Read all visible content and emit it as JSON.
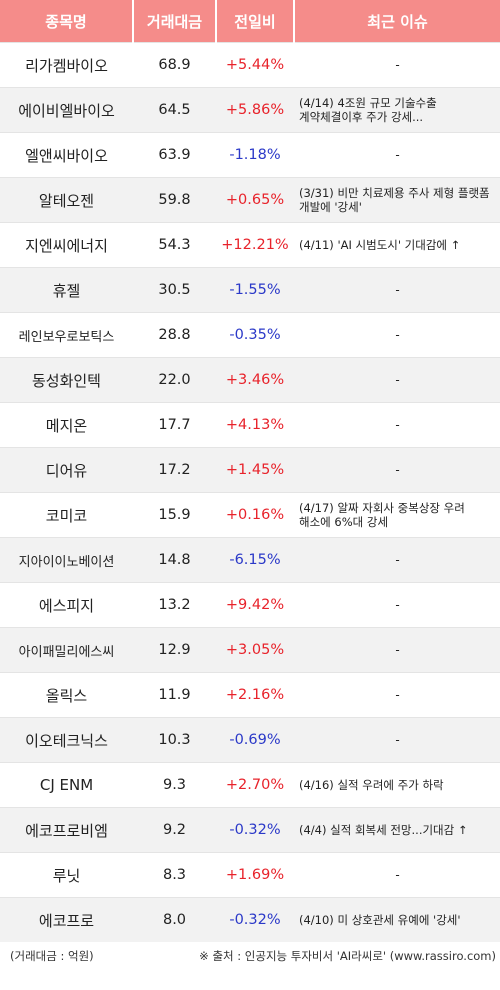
{
  "header": {
    "name": "종목명",
    "volume": "거래대금",
    "change": "전일비",
    "issue": "최근 이슈"
  },
  "rows": [
    {
      "name": "리가켐바이오",
      "volume": "68.9",
      "change": "+5.44%",
      "dir": "up",
      "issue": "-"
    },
    {
      "name": "에이비엘바이오",
      "volume": "64.5",
      "change": "+5.86%",
      "dir": "up",
      "issue": "(4/14) 4조원 규모 기술수출 계약체결이후 주가 강세..."
    },
    {
      "name": "엘앤씨바이오",
      "volume": "63.9",
      "change": "-1.18%",
      "dir": "down",
      "issue": "-"
    },
    {
      "name": "알테오젠",
      "volume": "59.8",
      "change": "+0.65%",
      "dir": "up",
      "issue": "(3/31) 비만 치료제용 주사 제형 플랫폼 개발에 '강세'"
    },
    {
      "name": "지엔씨에너지",
      "volume": "54.3",
      "change": "+12.21%",
      "dir": "up",
      "issue": "(4/11) 'AI 시범도시' 기대감에 ↑"
    },
    {
      "name": "휴젤",
      "volume": "30.5",
      "change": "-1.55%",
      "dir": "down",
      "issue": "-"
    },
    {
      "name": "레인보우로보틱스",
      "volume": "28.8",
      "change": "-0.35%",
      "dir": "down",
      "issue": "-"
    },
    {
      "name": "동성화인텍",
      "volume": "22.0",
      "change": "+3.46%",
      "dir": "up",
      "issue": "-"
    },
    {
      "name": "메지온",
      "volume": "17.7",
      "change": "+4.13%",
      "dir": "up",
      "issue": "-"
    },
    {
      "name": "디어유",
      "volume": "17.2",
      "change": "+1.45%",
      "dir": "up",
      "issue": "-"
    },
    {
      "name": "코미코",
      "volume": "15.9",
      "change": "+0.16%",
      "dir": "up",
      "issue": "(4/17) 알짜 자회사 중복상장 우려 해소에 6%대 강세"
    },
    {
      "name": "지아이이노베이션",
      "volume": "14.8",
      "change": "-6.15%",
      "dir": "down",
      "issue": "-"
    },
    {
      "name": "에스피지",
      "volume": "13.2",
      "change": "+9.42%",
      "dir": "up",
      "issue": "-"
    },
    {
      "name": "아이패밀리에스씨",
      "volume": "12.9",
      "change": "+3.05%",
      "dir": "up",
      "issue": "-"
    },
    {
      "name": "올릭스",
      "volume": "11.9",
      "change": "+2.16%",
      "dir": "up",
      "issue": "-"
    },
    {
      "name": "이오테크닉스",
      "volume": "10.3",
      "change": "-0.69%",
      "dir": "down",
      "issue": "-"
    },
    {
      "name": "CJ ENM",
      "volume": "9.3",
      "change": "+2.70%",
      "dir": "up",
      "issue": "(4/16) 실적 우려에 주가 하락"
    },
    {
      "name": "에코프로비엠",
      "volume": "9.2",
      "change": "-0.32%",
      "dir": "down",
      "issue": "(4/4) 실적 회복세 전망...기대감 ↑"
    },
    {
      "name": "루닛",
      "volume": "8.3",
      "change": "+1.69%",
      "dir": "up",
      "issue": "-"
    },
    {
      "name": "에코프로",
      "volume": "8.0",
      "change": "-0.32%",
      "dir": "down",
      "issue": "(4/10) 미 상호관세 유예에 '강세'"
    }
  ],
  "footer": {
    "unit": "(거래대금 : 억원)",
    "source": "※ 출처 : 인공지능 투자비서 'AI라씨로' (www.rassiro.com)"
  },
  "colors": {
    "header_bg": "#f58c8a",
    "up": "#e8232b",
    "down": "#2b39c8",
    "stripe": "#f2f2f2"
  }
}
